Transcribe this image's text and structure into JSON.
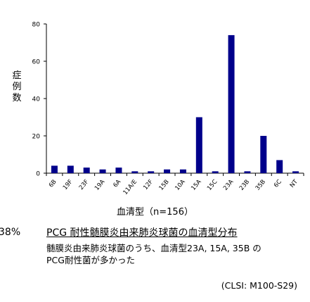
{
  "chart_data": {
    "type": "bar",
    "categories": [
      "6B",
      "19F",
      "23F",
      "19A",
      "6A",
      "11A/E",
      "12F",
      "15B",
      "10A",
      "15A",
      "15C",
      "23A",
      "23B",
      "35B",
      "6C",
      "NT"
    ],
    "values": [
      4,
      4,
      3,
      2,
      3,
      1,
      1,
      2,
      2,
      30,
      1,
      74,
      1,
      20,
      7,
      1
    ],
    "ylim": [
      0,
      80
    ],
    "yticks": [
      0,
      20,
      40,
      60,
      80
    ],
    "ylabel": "症例数",
    "xlabel": "血清型（n=156）",
    "bar_color": "#00008b",
    "grid": false
  },
  "side_text": "38%",
  "caption": {
    "title": "PCG 耐性髄膜炎由来肺炎球菌の血清型分布",
    "line1": "髄膜炎由来肺炎球菌のうち、血清型23A, 15A, 35B の",
    "line2": "PCG耐性菌が多かった",
    "source": "(CLSI: M100-S29)"
  }
}
